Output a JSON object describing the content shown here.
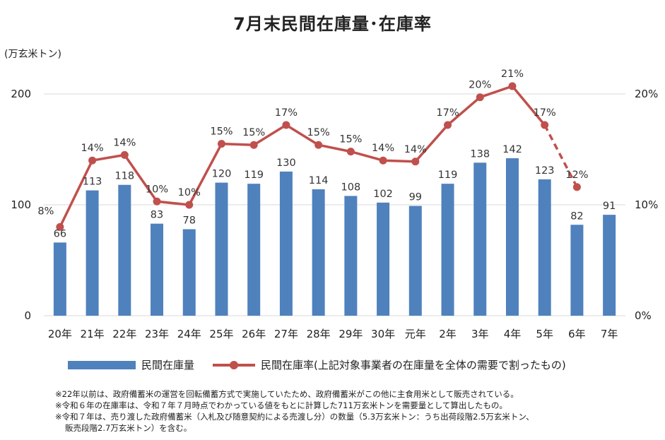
{
  "chart_data": {
    "type": "bar+line",
    "title": "7月末民間在庫量･在庫率",
    "ylabel": "(万玄米トン)",
    "categories": [
      "20年",
      "21年",
      "22年",
      "23年",
      "24年",
      "25年",
      "26年",
      "27年",
      "28年",
      "29年",
      "30年",
      "元年",
      "2年",
      "3年",
      "4年",
      "5年",
      "6年",
      "7年"
    ],
    "series": [
      {
        "name": "民間在庫量",
        "type": "bar",
        "axis": "left",
        "values": [
          66,
          113,
          118,
          83,
          78,
          120,
          119,
          130,
          114,
          108,
          102,
          99,
          119,
          138,
          142,
          123,
          82,
          91
        ],
        "labels": [
          "66",
          "113",
          "118",
          "83",
          "78",
          "120",
          "119",
          "130",
          "114",
          "108",
          "102",
          "99",
          "119",
          "138",
          "142",
          "123",
          "82",
          "91"
        ]
      },
      {
        "name": "民間在庫率(上記対象事業者の在庫量を全体の需要で割ったもの)",
        "type": "line",
        "axis": "right",
        "values": [
          8,
          14,
          14.5,
          10.3,
          10,
          15.5,
          15.4,
          17.2,
          15.4,
          14.8,
          14,
          13.9,
          17.2,
          19.7,
          20.7,
          17.2,
          11.6,
          null
        ],
        "labels": [
          "8%",
          "14%",
          "14%",
          "10%",
          "10%",
          "15%",
          "15%",
          "17%",
          "15%",
          "15%",
          "14%",
          "14%",
          "17%",
          "20%",
          "21%",
          "17%",
          "12%",
          ""
        ],
        "dashed_last_segment": true
      }
    ],
    "ylim_left": [
      0,
      200
    ],
    "left_ticks": [
      "0",
      "100",
      "200"
    ],
    "ylim_right": [
      0,
      20
    ],
    "right_ticks": [
      "0%",
      "10%",
      "20%"
    ],
    "grid": true,
    "legend_position": "bottom"
  },
  "notes": [
    "※22年以前は、政府備蓄米の運営を回転備蓄方式で実施していたため、政府備蓄米がこの他に主食用米として販売されている。",
    "※令和６年の在庫率は、令和７年７月時点でわかっている値をもとに計算した711万玄米トンを需要量として算出したもの。",
    "※令和７年は、売り渡した政府備蓄米（入札及び随意契約による売渡し分）の数量（5.3万玄米トン：うち出荷段階2.5万玄米トン、",
    "販売段階2.7万玄米トン）を含む。"
  ],
  "colors": {
    "bar": "#4f81bd",
    "line": "#c0504d",
    "grid": "#d9d9d9"
  }
}
